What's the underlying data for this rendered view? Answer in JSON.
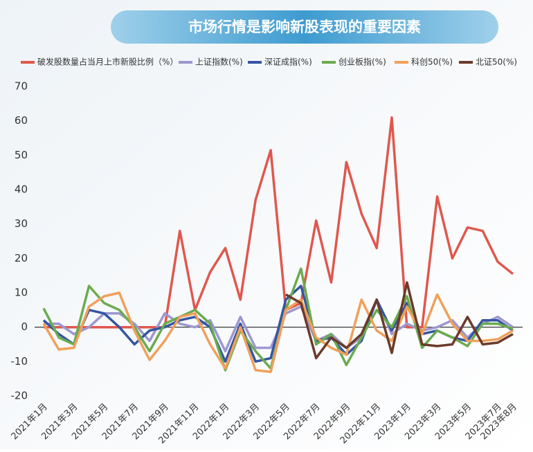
{
  "chart_data": {
    "type": "line",
    "title": "市场行情是影响新股表现的重要因素",
    "categories": [
      "2021年1月",
      null,
      "2021年3月",
      null,
      "2021年5月",
      null,
      "2021年7月",
      null,
      "2021年9月",
      null,
      "2021年11月",
      null,
      "2022年1月",
      null,
      "2022年3月",
      null,
      "2022年5月",
      null,
      "2022年7月",
      null,
      "2022年9月",
      null,
      "2022年11月",
      null,
      "2023年1月",
      null,
      "2023年3月",
      null,
      "2023年5月",
      null,
      "2023年7月",
      "2023年8月"
    ],
    "series": [
      {
        "name": "破发股数量占当月上市新股比例（%）",
        "color": "#e0574d",
        "values": [
          0,
          0,
          0,
          0,
          0,
          0,
          0,
          0,
          0,
          28,
          5,
          16,
          23,
          8,
          37,
          51.5,
          5,
          7,
          31,
          13,
          48,
          33,
          23,
          61,
          0,
          0,
          38,
          20,
          29,
          28,
          19,
          15.5
        ]
      },
      {
        "name": "上证指数(%)",
        "color": "#9d97cf",
        "values": [
          1,
          1,
          -2,
          0,
          4,
          4,
          1,
          -4,
          4,
          1,
          0,
          2,
          -7,
          3,
          -6,
          -6,
          4,
          6,
          -4,
          -2,
          -6,
          -3,
          8,
          -2,
          1,
          -1,
          0,
          2,
          -3,
          1,
          3,
          0
        ]
      },
      {
        "name": "深证成指(%)",
        "color": "#3555a3",
        "values": [
          2,
          -2,
          -5,
          5,
          4,
          0,
          -5,
          -1,
          0,
          2,
          3,
          0,
          -10,
          1,
          -10,
          -9,
          8,
          12,
          -4,
          -3,
          -8,
          -4,
          8,
          -1,
          7,
          -2,
          -1,
          -3,
          -4,
          2,
          2,
          -1
        ]
      },
      {
        "name": "创业板指(%)",
        "color": "#6aab4f",
        "values": [
          5.5,
          -3,
          -5,
          12,
          7,
          5,
          0,
          -7,
          1,
          3,
          5,
          1,
          -12.5,
          -1,
          -7,
          -12,
          5,
          17,
          -5,
          -2,
          -11,
          -3,
          5,
          0,
          9,
          -6,
          -1,
          -3,
          -5.5,
          1,
          1,
          -0.5
        ]
      },
      {
        "name": "科创50(%)",
        "color": "#f0a05a",
        "values": [
          1,
          -6.5,
          -6,
          6,
          9,
          10,
          -1,
          -9.5,
          -4,
          3,
          4,
          -5,
          -12,
          0,
          -12.5,
          -13,
          5,
          8,
          -3,
          -6,
          -8,
          8,
          -1,
          -4,
          6,
          -2,
          9.5,
          1,
          -4,
          -4,
          -3.5,
          -1
        ]
      },
      {
        "name": "北证50(%)",
        "color": "#6b3a2a",
        "values": [
          null,
          null,
          null,
          null,
          null,
          null,
          null,
          null,
          null,
          null,
          null,
          null,
          null,
          null,
          null,
          null,
          9.5,
          7,
          -9,
          -3,
          -6,
          -2,
          8,
          -7.5,
          13,
          -5,
          -5.5,
          -5,
          3,
          -5,
          -4.5,
          -2
        ]
      }
    ],
    "ylim": [
      -20,
      70
    ],
    "yticks": [
      -20,
      -10,
      0,
      10,
      20,
      30,
      40,
      50,
      60,
      70
    ]
  }
}
